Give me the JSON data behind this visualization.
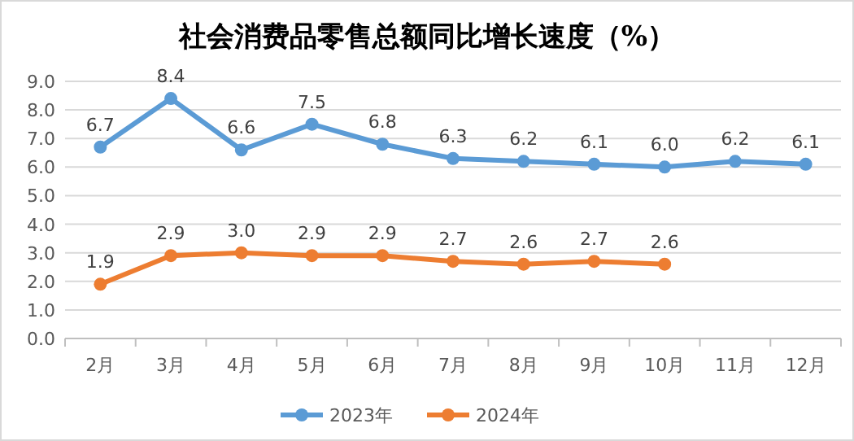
{
  "chart_data": {
    "type": "line",
    "title": "社会消费品零售总额同比增长速度（%）",
    "categories": [
      "2月",
      "3月",
      "4月",
      "5月",
      "6月",
      "7月",
      "8月",
      "9月",
      "10月",
      "11月",
      "12月"
    ],
    "series": [
      {
        "name": "2023年",
        "color": "#5b9bd5",
        "values": [
          6.7,
          8.4,
          6.6,
          7.5,
          6.8,
          6.3,
          6.2,
          6.1,
          6.0,
          6.2,
          6.1
        ],
        "value_labels": [
          "6.7",
          "8.4",
          "6.6",
          "7.5",
          "6.8",
          "6.3",
          "6.2",
          "6.1",
          "6.0",
          "6.2",
          "6.1"
        ]
      },
      {
        "name": "2024年",
        "color": "#ed7d31",
        "values": [
          1.9,
          2.9,
          3.0,
          2.9,
          2.9,
          2.7,
          2.6,
          2.7,
          2.6,
          null,
          null
        ],
        "value_labels": [
          "1.9",
          "2.9",
          "3.0",
          "2.9",
          "2.9",
          "2.7",
          "2.6",
          "2.7",
          "2.6",
          null,
          null
        ]
      }
    ],
    "ylim": [
      0,
      9
    ],
    "yticks": [
      {
        "value": 0,
        "label": "0.0"
      },
      {
        "value": 1,
        "label": "1.0"
      },
      {
        "value": 2,
        "label": "2.0"
      },
      {
        "value": 3,
        "label": "3.0"
      },
      {
        "value": 4,
        "label": "4.0"
      },
      {
        "value": 5,
        "label": "5.0"
      },
      {
        "value": 6,
        "label": "6.0"
      },
      {
        "value": 7,
        "label": "7.0"
      },
      {
        "value": 8,
        "label": "8.0"
      },
      {
        "value": 9,
        "label": "9.0"
      }
    ],
    "grid": "y",
    "legend": "bottom",
    "marker": "circle",
    "line_style": "solid"
  }
}
